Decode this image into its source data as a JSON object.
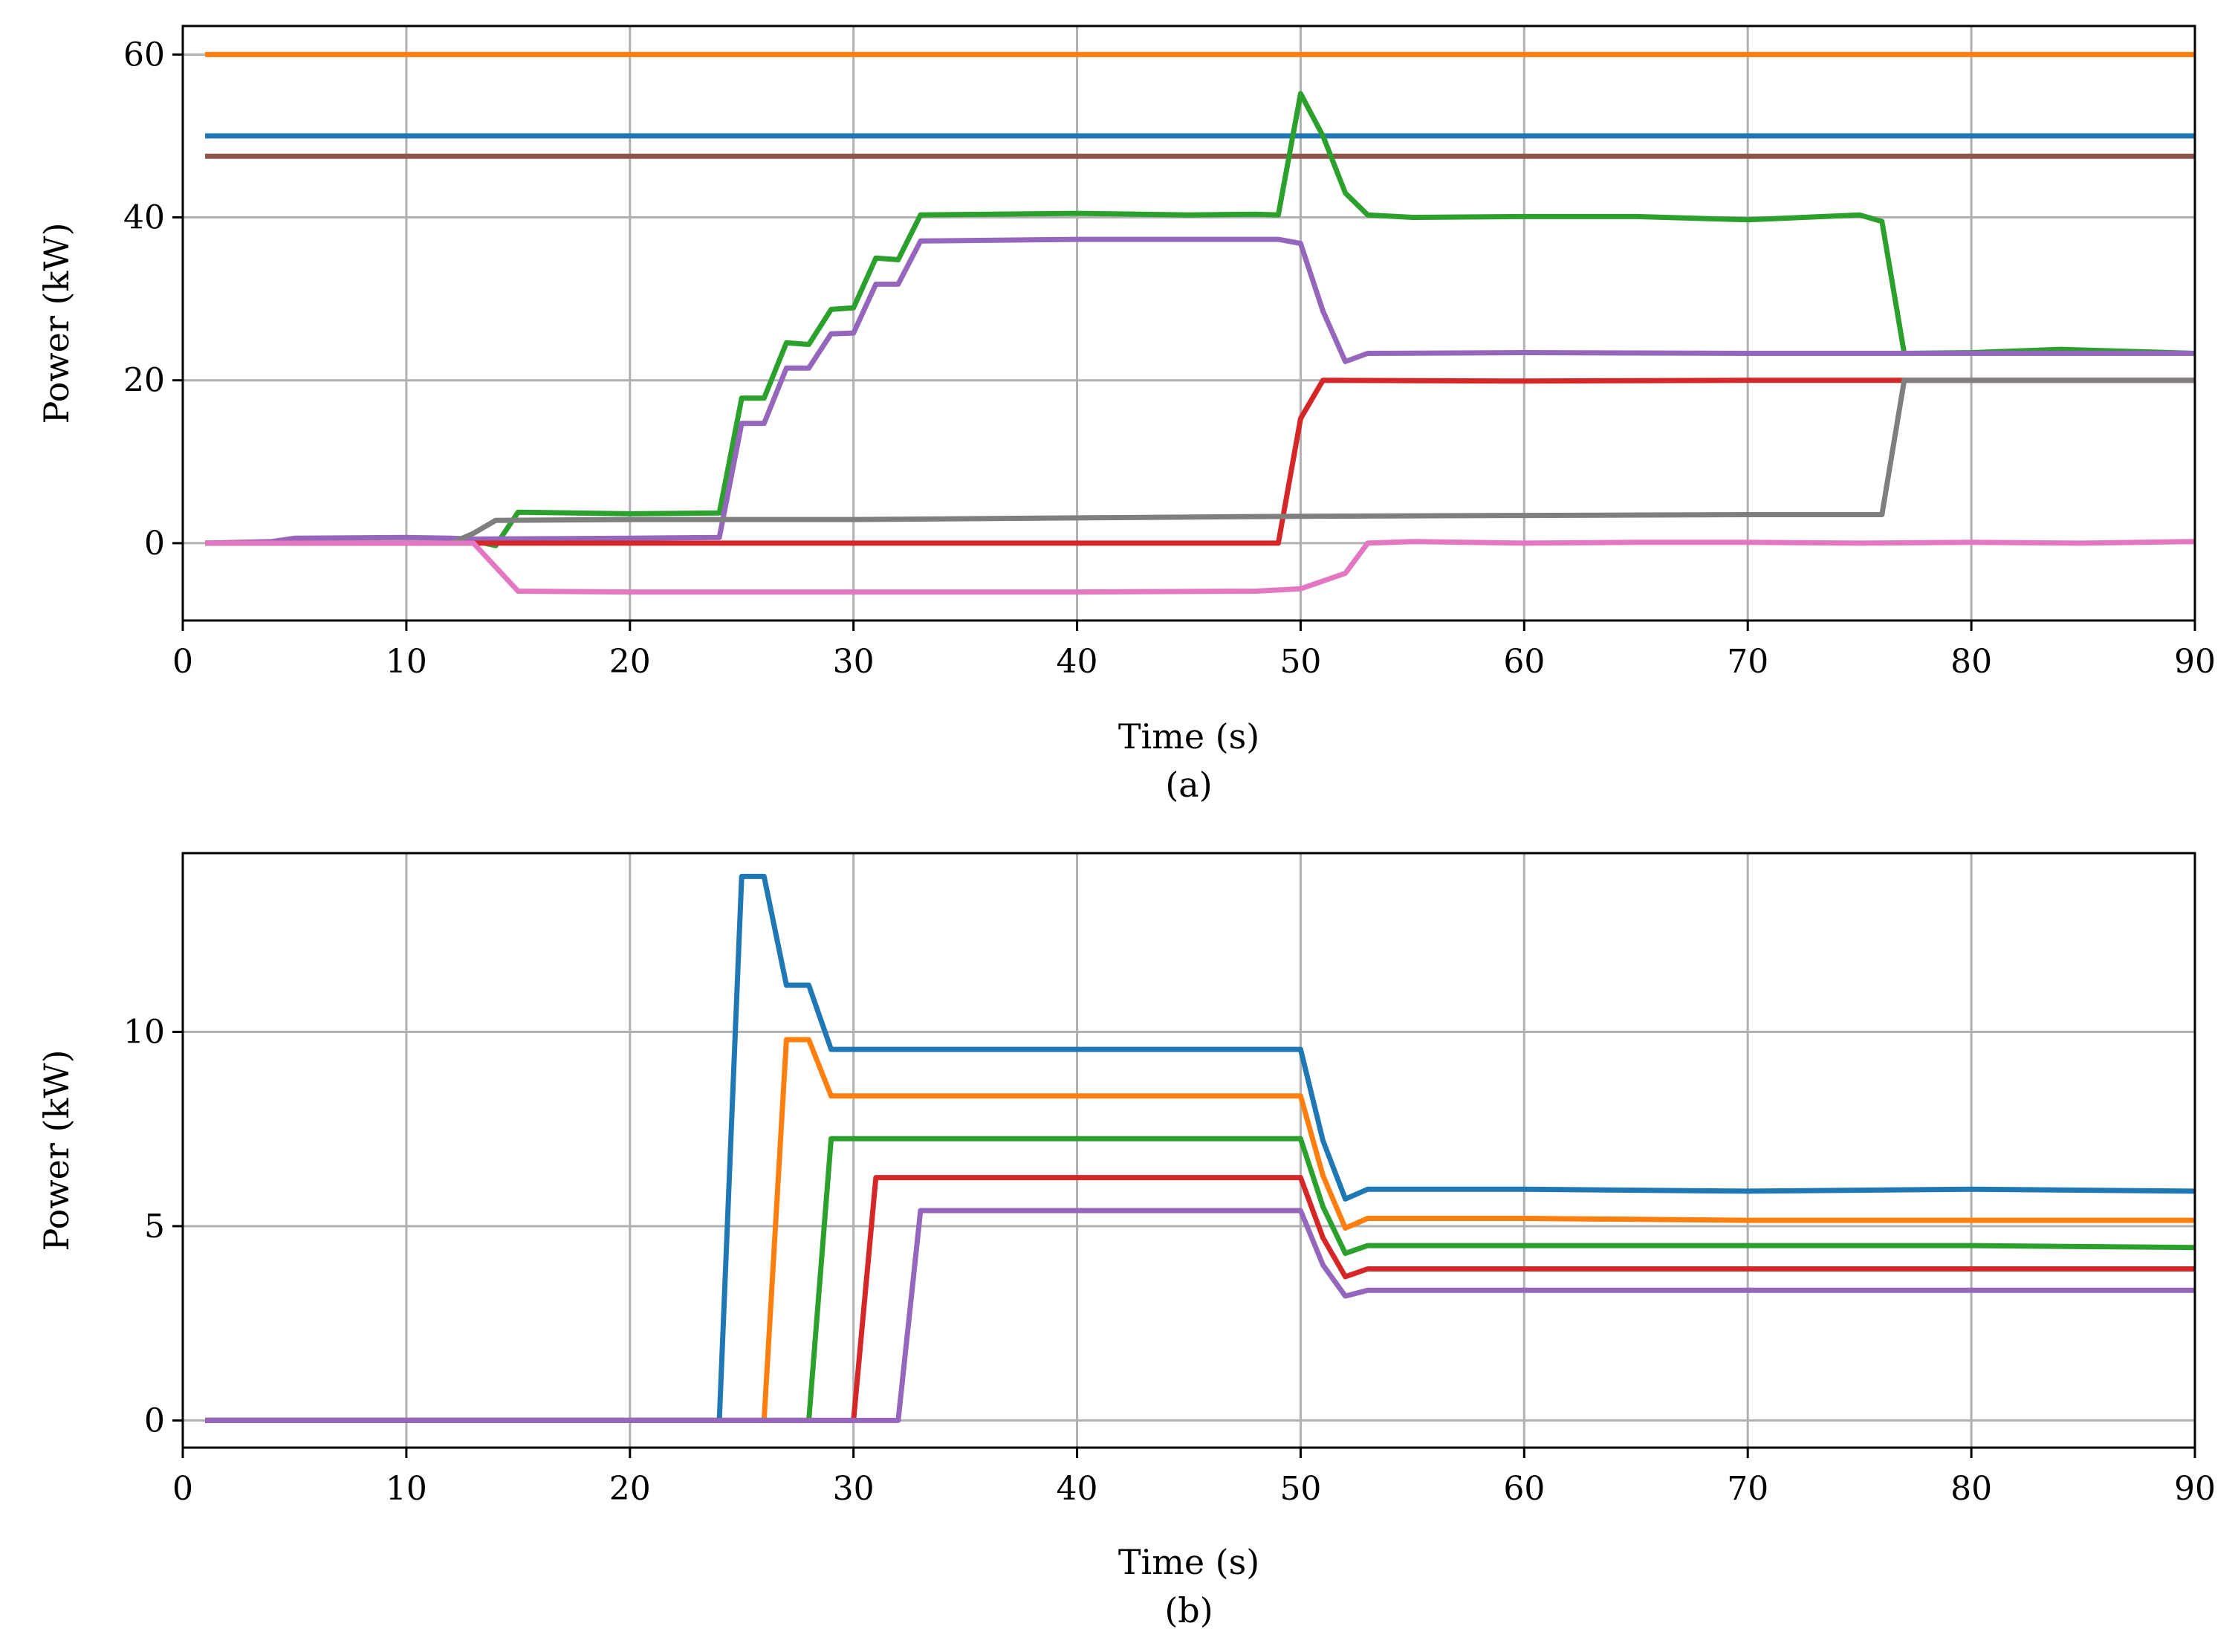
{
  "chart_data": [
    {
      "type": "line",
      "caption": "(a)",
      "xlabel": "Time (s)",
      "ylabel": "Power (kW)",
      "xlim": [
        0,
        90
      ],
      "ylim": [
        -9.5,
        63.5
      ],
      "xticks": [
        0,
        10,
        20,
        30,
        40,
        50,
        60,
        70,
        80,
        90
      ],
      "yticks": [
        0,
        20,
        40,
        60
      ],
      "grid": true,
      "series": [
        {
          "color": "#ff7f0e",
          "points": [
            [
              1,
              60
            ],
            [
              90,
              60
            ]
          ]
        },
        {
          "color": "#1f77b4",
          "points": [
            [
              1,
              50
            ],
            [
              90,
              50
            ]
          ]
        },
        {
          "color": "#8c564b",
          "points": [
            [
              1,
              47.5
            ],
            [
              90,
              47.5
            ]
          ]
        },
        {
          "color": "#2ca02c",
          "points": [
            [
              1,
              0
            ],
            [
              12,
              0
            ],
            [
              13,
              0.3
            ],
            [
              14,
              -0.3
            ],
            [
              15,
              3.8
            ],
            [
              20,
              3.6
            ],
            [
              24,
              3.7
            ],
            [
              25,
              17.8
            ],
            [
              26,
              17.8
            ],
            [
              27,
              24.6
            ],
            [
              28,
              24.4
            ],
            [
              29,
              28.7
            ],
            [
              30,
              28.9
            ],
            [
              31,
              35
            ],
            [
              32,
              34.8
            ],
            [
              33,
              40.3
            ],
            [
              40,
              40.5
            ],
            [
              45,
              40.3
            ],
            [
              48,
              40.4
            ],
            [
              49,
              40.3
            ],
            [
              50,
              55.2
            ],
            [
              51,
              50
            ],
            [
              52,
              43
            ],
            [
              53,
              40.3
            ],
            [
              55,
              40
            ],
            [
              60,
              40.1
            ],
            [
              65,
              40.1
            ],
            [
              70,
              39.7
            ],
            [
              75,
              40.3
            ],
            [
              76,
              39.5
            ],
            [
              77,
              23.3
            ],
            [
              80,
              23.4
            ],
            [
              84,
              23.8
            ],
            [
              90,
              23.3
            ]
          ]
        },
        {
          "color": "#9467bd",
          "points": [
            [
              1,
              0
            ],
            [
              4,
              0.2
            ],
            [
              5,
              0.6
            ],
            [
              10,
              0.7
            ],
            [
              12,
              0.6
            ],
            [
              13,
              0.5
            ],
            [
              20,
              0.6
            ],
            [
              24,
              0.7
            ],
            [
              25,
              14.7
            ],
            [
              26,
              14.7
            ],
            [
              27,
              21.5
            ],
            [
              28,
              21.5
            ],
            [
              29,
              25.7
            ],
            [
              30,
              25.8
            ],
            [
              31,
              31.8
            ],
            [
              32,
              31.8
            ],
            [
              33,
              37.1
            ],
            [
              40,
              37.3
            ],
            [
              45,
              37.3
            ],
            [
              49,
              37.3
            ],
            [
              50,
              36.8
            ],
            [
              51,
              28.5
            ],
            [
              52,
              22.3
            ],
            [
              53,
              23.3
            ],
            [
              60,
              23.4
            ],
            [
              70,
              23.3
            ],
            [
              80,
              23.3
            ],
            [
              90,
              23.3
            ]
          ]
        },
        {
          "color": "#d62728",
          "points": [
            [
              1,
              0
            ],
            [
              13,
              0
            ],
            [
              14,
              0
            ],
            [
              49,
              0
            ],
            [
              50,
              15.3
            ],
            [
              51,
              20
            ],
            [
              60,
              19.9
            ],
            [
              70,
              20
            ],
            [
              77,
              20
            ],
            [
              90,
              20
            ]
          ]
        },
        {
          "color": "#7f7f7f",
          "points": [
            [
              1,
              0
            ],
            [
              12,
              0
            ],
            [
              13,
              1.2
            ],
            [
              14,
              2.8
            ],
            [
              20,
              2.9
            ],
            [
              30,
              2.9
            ],
            [
              40,
              3.1
            ],
            [
              50,
              3.3
            ],
            [
              60,
              3.4
            ],
            [
              70,
              3.5
            ],
            [
              76,
              3.5
            ],
            [
              77,
              20
            ],
            [
              80,
              20
            ],
            [
              90,
              20
            ]
          ]
        },
        {
          "color": "#e377c2",
          "points": [
            [
              1,
              0
            ],
            [
              12,
              0
            ],
            [
              13,
              0
            ],
            [
              15,
              -5.9
            ],
            [
              20,
              -6
            ],
            [
              30,
              -6
            ],
            [
              40,
              -6
            ],
            [
              48,
              -5.9
            ],
            [
              50,
              -5.6
            ],
            [
              52,
              -3.7
            ],
            [
              53,
              0
            ],
            [
              55,
              0.2
            ],
            [
              60,
              0
            ],
            [
              65,
              0.1
            ],
            [
              70,
              0.1
            ],
            [
              75,
              0
            ],
            [
              80,
              0.1
            ],
            [
              85,
              0
            ],
            [
              90,
              0.2
            ]
          ]
        }
      ]
    },
    {
      "type": "line",
      "caption": "(b)",
      "xlabel": "Time (s)",
      "ylabel": "Power (kW)",
      "xlim": [
        0,
        90
      ],
      "ylim": [
        -0.7,
        14.6
      ],
      "xticks": [
        0,
        10,
        20,
        30,
        40,
        50,
        60,
        70,
        80,
        90
      ],
      "yticks": [
        0,
        5,
        10
      ],
      "grid": true,
      "series": [
        {
          "color": "#1f77b4",
          "points": [
            [
              1,
              0
            ],
            [
              24,
              0
            ],
            [
              25,
              14
            ],
            [
              26,
              14
            ],
            [
              27,
              11.2
            ],
            [
              28,
              11.2
            ],
            [
              29,
              9.55
            ],
            [
              50,
              9.55
            ],
            [
              51,
              7.2
            ],
            [
              52,
              5.7
            ],
            [
              53,
              5.95
            ],
            [
              60,
              5.95
            ],
            [
              70,
              5.9
            ],
            [
              80,
              5.95
            ],
            [
              90,
              5.9
            ]
          ]
        },
        {
          "color": "#ff7f0e",
          "points": [
            [
              1,
              0
            ],
            [
              26,
              0
            ],
            [
              27,
              9.8
            ],
            [
              28,
              9.8
            ],
            [
              29,
              8.35
            ],
            [
              50,
              8.35
            ],
            [
              51,
              6.3
            ],
            [
              52,
              4.95
            ],
            [
              53,
              5.2
            ],
            [
              60,
              5.2
            ],
            [
              70,
              5.15
            ],
            [
              80,
              5.15
            ],
            [
              90,
              5.15
            ]
          ]
        },
        {
          "color": "#2ca02c",
          "points": [
            [
              1,
              0
            ],
            [
              28,
              0
            ],
            [
              29,
              7.25
            ],
            [
              50,
              7.25
            ],
            [
              51,
              5.5
            ],
            [
              52,
              4.3
            ],
            [
              53,
              4.5
            ],
            [
              60,
              4.5
            ],
            [
              70,
              4.5
            ],
            [
              80,
              4.5
            ],
            [
              90,
              4.45
            ]
          ]
        },
        {
          "color": "#d62728",
          "points": [
            [
              1,
              0
            ],
            [
              30,
              0
            ],
            [
              31,
              6.25
            ],
            [
              50,
              6.25
            ],
            [
              51,
              4.7
            ],
            [
              52,
              3.7
            ],
            [
              53,
              3.9
            ],
            [
              60,
              3.9
            ],
            [
              70,
              3.9
            ],
            [
              80,
              3.9
            ],
            [
              90,
              3.9
            ]
          ]
        },
        {
          "color": "#9467bd",
          "points": [
            [
              1,
              0
            ],
            [
              32,
              0
            ],
            [
              33,
              5.4
            ],
            [
              50,
              5.4
            ],
            [
              51,
              4
            ],
            [
              52,
              3.2
            ],
            [
              53,
              3.35
            ],
            [
              60,
              3.35
            ],
            [
              70,
              3.35
            ],
            [
              80,
              3.35
            ],
            [
              90,
              3.35
            ]
          ]
        }
      ]
    }
  ]
}
